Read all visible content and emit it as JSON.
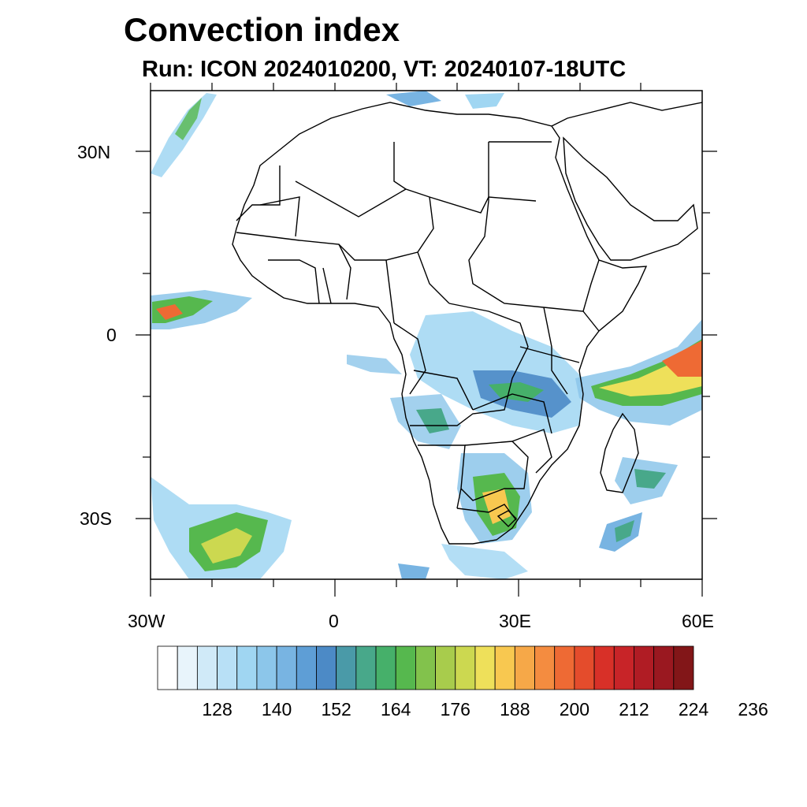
{
  "title": "Convection index",
  "subtitle": "Run: ICON 2024010200,  VT: 20240107-18UTC",
  "map": {
    "lon_range": [
      -30,
      60
    ],
    "lat_range": [
      -40,
      40
    ],
    "lat_tick_labels": [
      "30N",
      "0",
      "30S"
    ],
    "lon_tick_labels": [
      "30W",
      "0",
      "30E",
      "60E"
    ]
  },
  "colorbar": {
    "colors": [
      "#ffffff",
      "#e8f4fb",
      "#d0eaf8",
      "#b8e0f6",
      "#a0d6f2",
      "#8cc6ea",
      "#78b4e2",
      "#5e9ed6",
      "#4c8ac6",
      "#4a9aa8",
      "#48a88a",
      "#46b06a",
      "#56b84e",
      "#82c24c",
      "#a8cc4c",
      "#ccd850",
      "#eee05a",
      "#f8c850",
      "#f6a848",
      "#f48c40",
      "#ee6a34",
      "#e44c2c",
      "#d83028",
      "#c82428",
      "#b01c24",
      "#9a1820",
      "#821618"
    ],
    "labels": [
      "128",
      "140",
      "152",
      "164",
      "176",
      "188",
      "200",
      "212",
      "224",
      "236"
    ]
  }
}
